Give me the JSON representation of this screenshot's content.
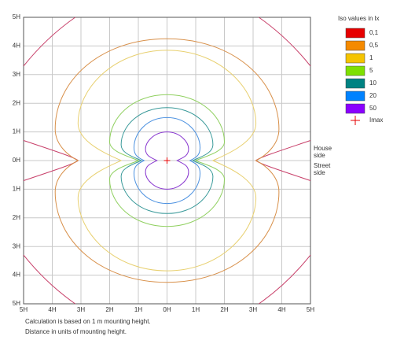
{
  "chart_data": {
    "type": "isolux",
    "legend_title": "Iso values in lx",
    "levels": [
      {
        "value": 0.1,
        "label": "0,1",
        "color": "#e60000",
        "line": "#c8406a"
      },
      {
        "value": 0.5,
        "label": "0,5",
        "color": "#f58a00",
        "line": "#d8904a"
      },
      {
        "value": 1,
        "label": "1",
        "color": "#f5c400",
        "line": "#e8d070"
      },
      {
        "value": 5,
        "label": "5",
        "color": "#7ee000",
        "line": "#90d060"
      },
      {
        "value": 10,
        "label": "10",
        "color": "#008282",
        "line": "#3a9a9a"
      },
      {
        "value": 20,
        "label": "20",
        "color": "#0082ff",
        "line": "#4a90e0"
      },
      {
        "value": 50,
        "label": "50",
        "color": "#8a00ff",
        "line": "#8a3ad0"
      }
    ],
    "imax_label": "Imax",
    "imax_color": "#e60000",
    "house_side": [
      "House",
      "side"
    ],
    "street_side": [
      "Street",
      "side"
    ],
    "xlim": [
      -5,
      5
    ],
    "ylim": [
      -5,
      5
    ],
    "xticks": [
      {
        "value": -5,
        "label": "5H"
      },
      {
        "value": -4,
        "label": "4H"
      },
      {
        "value": -3,
        "label": "3H"
      },
      {
        "value": -2,
        "label": "2H"
      },
      {
        "value": -1,
        "label": "1H"
      },
      {
        "value": 0,
        "label": "0H"
      },
      {
        "value": 1,
        "label": "1H"
      },
      {
        "value": 2,
        "label": "2H"
      },
      {
        "value": 3,
        "label": "3H"
      },
      {
        "value": 4,
        "label": "4H"
      },
      {
        "value": 5,
        "label": "5H"
      }
    ],
    "yticks": [
      {
        "value": -5,
        "label": "5H"
      },
      {
        "value": -4,
        "label": "4H"
      },
      {
        "value": -3,
        "label": "3H"
      },
      {
        "value": -2,
        "label": "2H"
      },
      {
        "value": -1,
        "label": "1H"
      },
      {
        "value": 0,
        "label": "0H"
      },
      {
        "value": 1,
        "label": "1H"
      },
      {
        "value": 2,
        "label": "2H"
      },
      {
        "value": 3,
        "label": "3H"
      },
      {
        "value": 4,
        "label": "4H"
      },
      {
        "value": 5,
        "label": "5H"
      }
    ],
    "grid": true,
    "notes": [
      "Calculation is based on 1 m mounting height.",
      "Distance in units of mounting height."
    ]
  }
}
